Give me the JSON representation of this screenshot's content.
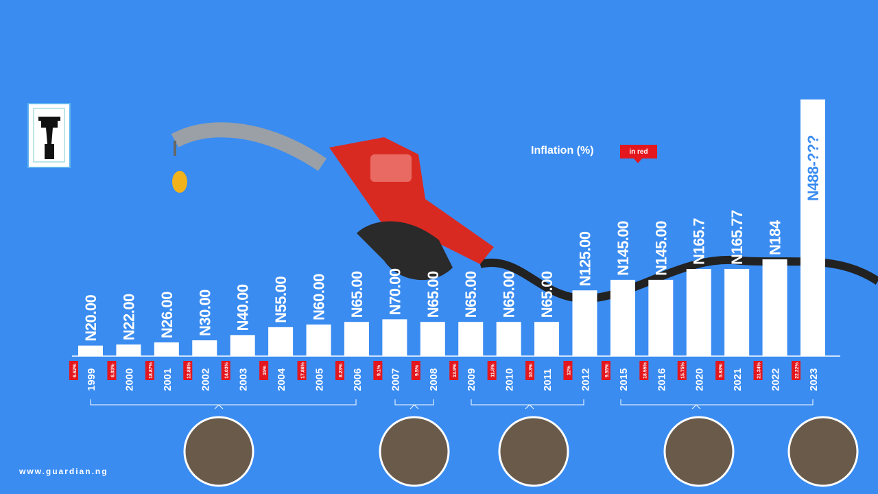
{
  "chart_data": {
    "type": "bar",
    "categories": [
      "1999",
      "2000",
      "2001",
      "2002",
      "2003",
      "2004",
      "2005",
      "2006",
      "2007",
      "2008",
      "2009",
      "2010",
      "2011",
      "2012",
      "2015",
      "2016",
      "2020",
      "2021",
      "2022",
      "2023"
    ],
    "values": [
      20,
      22,
      26,
      30,
      40,
      55,
      60,
      65,
      70,
      65,
      65,
      65,
      65,
      125,
      145,
      145,
      165.7,
      165.77,
      184,
      488
    ],
    "value_labels": [
      "N20.00",
      "N22.00",
      "N26.00",
      "N30.00",
      "N40.00",
      "N55.00",
      "N60.00",
      "N65.00",
      "N70.00",
      "N65.00",
      "N65.00",
      "N65.00",
      "N65.00",
      "N125.00",
      "N145.00",
      "N145.00",
      "N165.7",
      "N165.77",
      "N184",
      "N488-???"
    ],
    "color": "#ffffff",
    "inflation": {
      "title": "Inflation (%)",
      "note": "in red",
      "color": "#e3171d",
      "values": [
        6.62,
        6.93,
        18.87,
        12.88,
        14.03,
        15,
        17.86,
        8.23,
        9.1,
        9.5,
        13.9,
        11.8,
        10.3,
        12,
        9.55,
        18.55,
        15.75,
        5.63,
        21.34,
        22.22
      ],
      "value_labels": [
        "6.62%",
        "6.93%",
        "18.87%",
        "12.88%",
        "14.03%",
        "15%",
        "17.86%",
        "8.23%",
        "9.1%",
        "9.5%",
        "13.9%",
        "11.8%",
        "10.3%",
        "12%",
        "9.55%",
        "18.55%",
        "15.75%",
        "5.63%",
        "21.34%",
        "22.22%"
      ]
    }
  },
  "footer": {
    "source": "www.guardian.ng"
  }
}
